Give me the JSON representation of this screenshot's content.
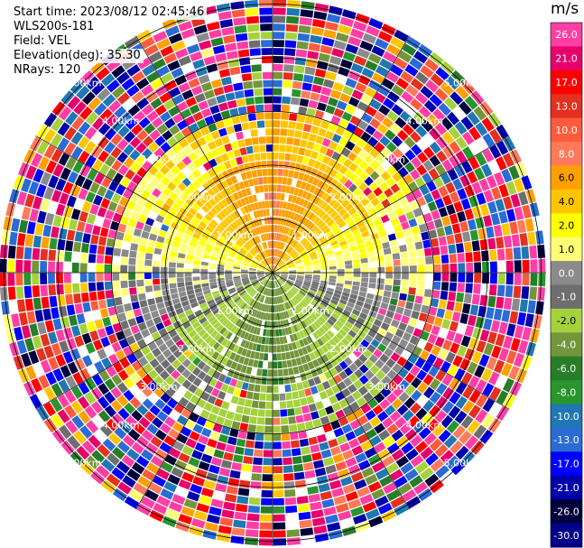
{
  "info": {
    "start_time": "Start time: 2023/08/12 02:45:46",
    "instrument": "WLS200s-181",
    "field": "Field: VEL",
    "elevation": "Elevation(deg): 35.30",
    "nrays": "NRays: 120"
  },
  "chart_data": {
    "type": "heatmap",
    "projection": "polar (PPI)",
    "field": "VEL",
    "units": "m/s",
    "nrays": 120,
    "elevation_deg": 35.3,
    "range_rings_km": [
      1.0,
      2.0,
      3.0,
      4.0,
      5.0
    ],
    "range_ring_labels": [
      "1.00km",
      "2.00km",
      "3.00km",
      "4.00km",
      "5.00km"
    ],
    "colorbar": {
      "labels": [
        "26.0",
        "21.0",
        "17.0",
        "13.0",
        "10.0",
        "8.0",
        "6.0",
        "4.0",
        "2.0",
        "1.0",
        "0.0",
        "-1.0",
        "-2.0",
        "-4.0",
        "-6.0",
        "-8.0",
        "-10.0",
        "-13.0",
        "-17.0",
        "-21.0",
        "-26.0",
        "-30.0"
      ],
      "colors": [
        "#ff3ea5",
        "#e8006a",
        "#ff0000",
        "#e4301e",
        "#ff5a3c",
        "#ff7a5a",
        "#ffa000",
        "#ffc600",
        "#ffff00",
        "#ffff77",
        "#8a8a8a",
        "#6e6e6e",
        "#a5d23c",
        "#73963a",
        "#287d28",
        "#28962d",
        "#1f77b4",
        "#2a6bd6",
        "#0000ff",
        "#0000aa",
        "#00003c",
        "#00008b"
      ]
    },
    "velocity_by_azimuth": {
      "azimuth_deg": [
        0,
        30,
        60,
        90,
        120,
        150,
        180,
        210,
        240,
        270,
        300,
        330
      ],
      "near_range_m_s": [
        6.0,
        4.0,
        2.0,
        0.0,
        -2.0,
        -4.0,
        -6.0,
        -4.0,
        -2.0,
        0.0,
        2.0,
        4.0
      ],
      "mid_range_m_s": [
        4.0,
        2.0,
        1.0,
        0.0,
        -1.0,
        -2.0,
        -4.0,
        -2.0,
        -1.0,
        0.0,
        1.0,
        2.0
      ]
    }
  }
}
